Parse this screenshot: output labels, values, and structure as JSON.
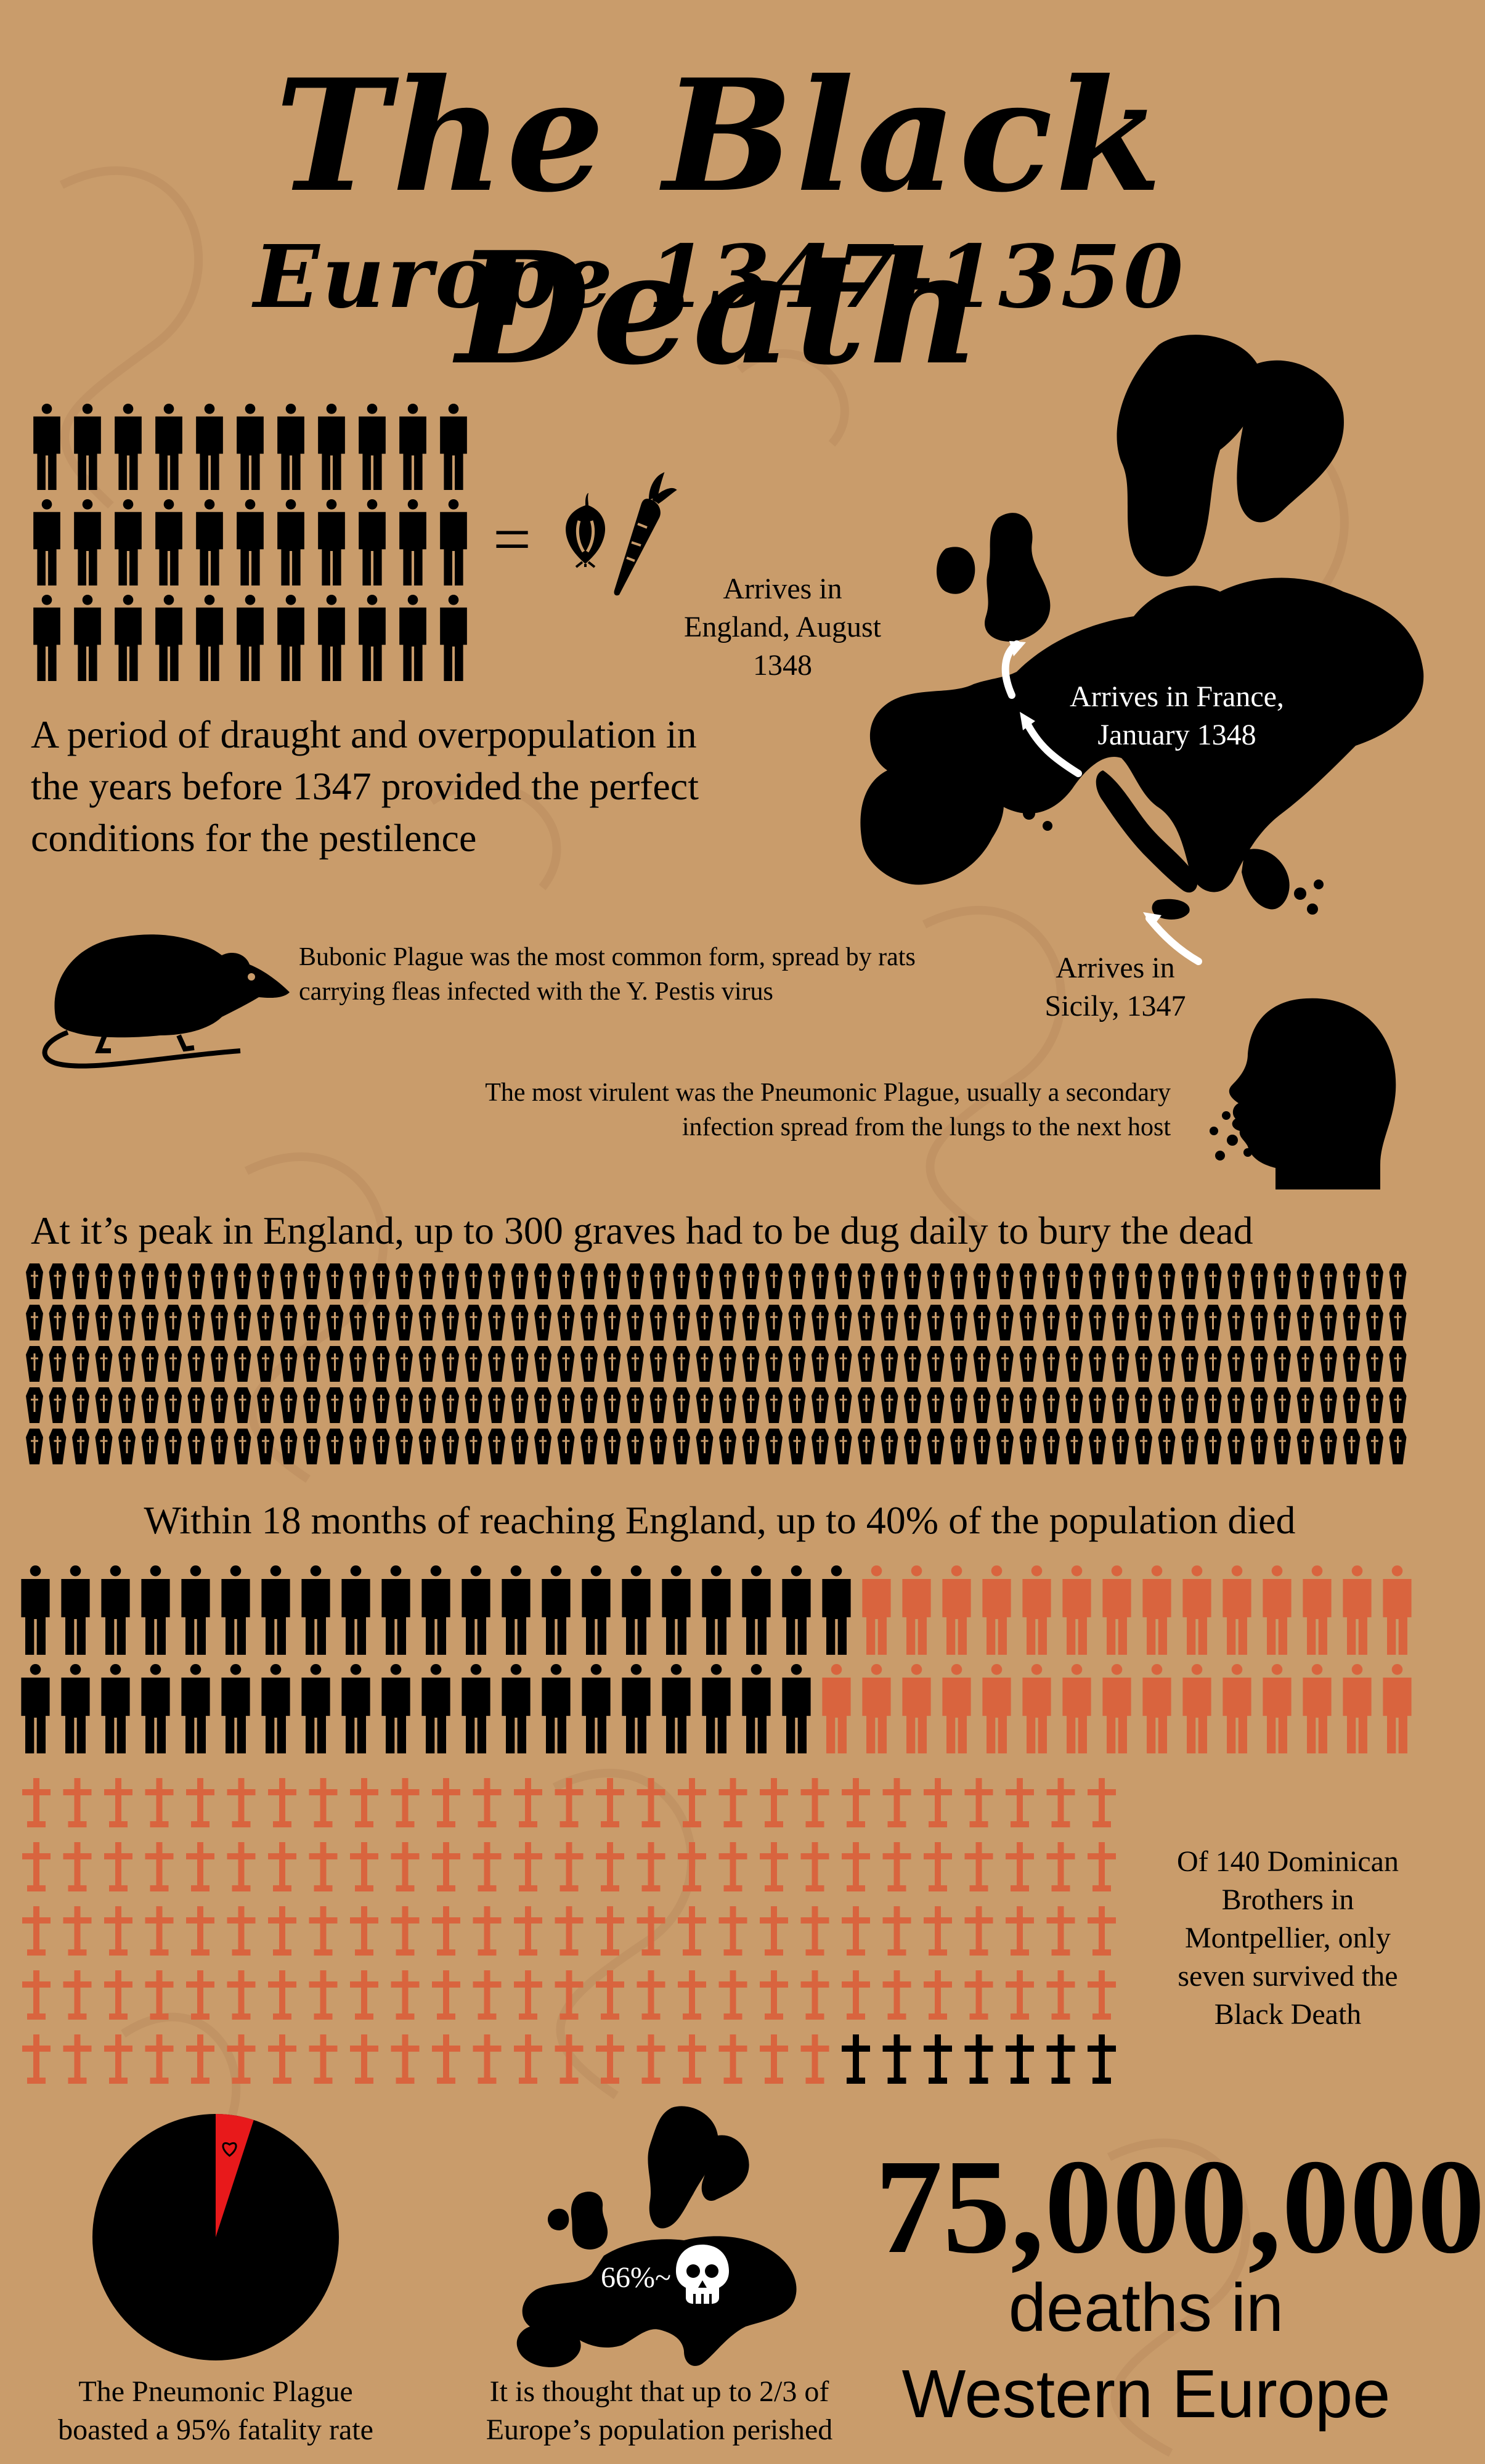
{
  "header": {
    "title": "The Black Death",
    "subtitle": "Europe 1347-1350"
  },
  "famine": {
    "equals": "=",
    "text": "A period of draught and overpopulation in the years before 1347 provided the perfect conditions for the pestilence",
    "people_count": 33
  },
  "map": {
    "england": "Arrives in England, August 1348",
    "france": "Arrives in France, January 1348",
    "sicily": "Arrives in Sicily, 1347"
  },
  "bubonic": {
    "text": "Bubonic Plague was the most common form, spread by rats carrying fleas infected with the Y. Pestis virus"
  },
  "pneumonic": {
    "text": "The most virulent was the Pneumonic Plague, usually a secondary infection spread from the lungs to the next host"
  },
  "graves": {
    "heading": "At it’s peak in England, up to 300 graves had to be dug daily to bury the dead",
    "count": 300
  },
  "population": {
    "heading": "Within 18 months of reaching England, up to 40% of the population died",
    "black_count": 41,
    "red_count": 29,
    "dead_fraction": 0.4
  },
  "dominican": {
    "text": "Of 140 Dominican Brothers in Montpellier, only seven survived the Black Death",
    "total": 140,
    "survived": 7
  },
  "fatality": {
    "caption": "The Pneumonic Plague boasted a 95% fatality rate",
    "rate": 0.95
  },
  "europe_share": {
    "label": "66%~",
    "caption": "It is thought that up to 2/3 of Europe’s population perished"
  },
  "deaths": {
    "number": "75,000,000",
    "line1": "deaths in",
    "line2": "Western Europe"
  },
  "colors": {
    "background": "#c99c6b",
    "ink": "#000000",
    "dead": "#d9643e",
    "pie_slice": "#e8191b"
  },
  "icons": [
    "person-icon",
    "onion-icon",
    "carrot-icon",
    "rat-icon",
    "head-icon",
    "coffin-icon",
    "cross-icon",
    "skull-icon",
    "arrow-icon"
  ]
}
